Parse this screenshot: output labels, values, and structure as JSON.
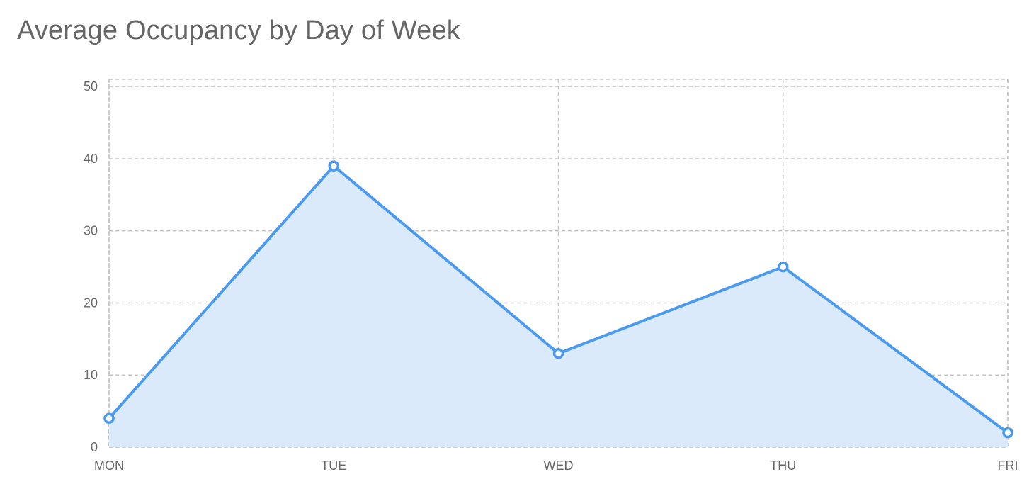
{
  "colors": {
    "line": "#4a9af0",
    "area": "#dbeafb",
    "grid": "#c4c4c4",
    "text": "#666666"
  },
  "chart_data": {
    "type": "area",
    "title": "Average Occupancy by Day of Week",
    "xlabel": "",
    "ylabel": "",
    "categories": [
      "MON",
      "TUE",
      "WED",
      "THU",
      "FRI"
    ],
    "series": [
      {
        "values": [
          4,
          39,
          13,
          25,
          2
        ]
      }
    ],
    "ylim": [
      0,
      50
    ],
    "yticks": [
      0,
      10,
      20,
      30,
      40,
      50
    ],
    "grid": true,
    "grid_style": "dashed",
    "markers": "hollow-circle",
    "legend": "none"
  }
}
